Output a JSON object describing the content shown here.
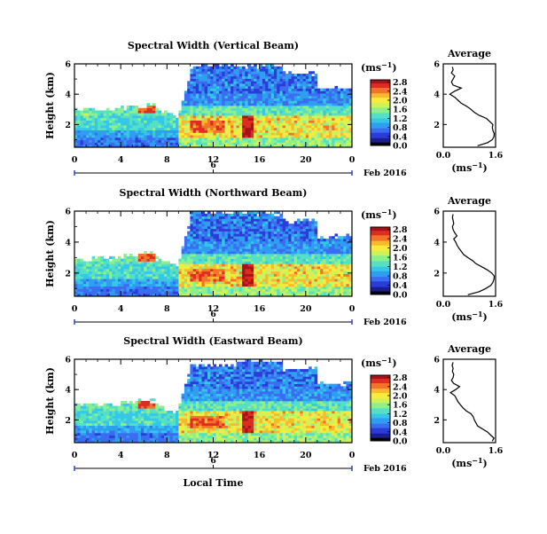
{
  "figure": {
    "shared_xlabel": "Local Time",
    "date_label": "Feb 2016",
    "day_label": "6",
    "colorbar_unit": "(ms",
    "unit_exp": "−1",
    "average_title": "Average",
    "average_unit": "(ms",
    "ylabel": "Height (km)"
  },
  "colormap": [
    "#000000",
    "#1a1f8f",
    "#2b3dd8",
    "#3b6cf2",
    "#2f9ef0",
    "#35c7e8",
    "#55e0c4",
    "#8df08a",
    "#cdf25a",
    "#f7ec3c",
    "#f9b92e",
    "#f4722a",
    "#dd2d23",
    "#a5121a"
  ],
  "chart_data": [
    {
      "type": "heatmap",
      "title": "Spectral Width (Vertical Beam)",
      "xlabel": "",
      "ylabel": "Height (km)",
      "x_ticks": [
        "0",
        "4",
        "8",
        "12",
        "16",
        "20",
        "0"
      ],
      "y_ticks": [
        "2",
        "4",
        "6"
      ],
      "xlim": [
        0,
        24
      ],
      "ylim": [
        0.5,
        6
      ],
      "colorbar_ticks": [
        "0.0",
        "0.4",
        "0.8",
        "1.2",
        "1.6",
        "2.0",
        "2.4",
        "2.8"
      ],
      "colorbar_range": [
        0.0,
        2.9
      ],
      "average_profile": {
        "xlim": [
          0.0,
          1.6
        ],
        "x_ticks": [
          "0.0",
          "1.6"
        ],
        "y_ticks": [
          "2",
          "4",
          "6"
        ],
        "height_km": [
          0.6,
          0.8,
          1.0,
          1.2,
          1.4,
          1.6,
          1.8,
          2.0,
          2.2,
          2.4,
          2.6,
          2.8,
          3.0,
          3.2,
          3.4,
          3.6,
          3.8,
          4.0,
          4.2,
          4.4,
          4.6,
          4.8,
          5.0,
          5.2,
          5.4,
          5.6,
          5.8
        ],
        "mean_width_ms": [
          1.05,
          1.35,
          1.5,
          1.55,
          1.56,
          1.52,
          1.5,
          1.52,
          1.42,
          1.32,
          1.1,
          0.95,
          0.85,
          0.72,
          0.55,
          0.45,
          0.35,
          0.2,
          0.35,
          0.55,
          0.3,
          0.25,
          0.3,
          0.35,
          0.25,
          0.3,
          0.28
        ]
      }
    },
    {
      "type": "heatmap",
      "title": "Spectral Width (Northward Beam)",
      "xlabel": "",
      "ylabel": "Height (km)",
      "x_ticks": [
        "0",
        "4",
        "8",
        "12",
        "16",
        "20",
        "0"
      ],
      "y_ticks": [
        "2",
        "4",
        "6"
      ],
      "xlim": [
        0,
        24
      ],
      "ylim": [
        0.5,
        6
      ],
      "colorbar_ticks": [
        "0.0",
        "0.4",
        "0.8",
        "1.2",
        "1.6",
        "2.0",
        "2.4",
        "2.8"
      ],
      "colorbar_range": [
        0.0,
        2.9
      ],
      "average_profile": {
        "xlim": [
          0.0,
          1.6
        ],
        "x_ticks": [
          "0.0",
          "1.6"
        ],
        "y_ticks": [
          "2",
          "4",
          "6"
        ],
        "height_km": [
          0.6,
          0.8,
          1.0,
          1.2,
          1.4,
          1.6,
          1.8,
          2.0,
          2.2,
          2.4,
          2.6,
          2.8,
          3.0,
          3.2,
          3.4,
          3.6,
          3.8,
          4.0,
          4.2,
          4.4,
          4.6,
          4.8,
          5.0,
          5.2,
          5.4,
          5.6,
          5.8
        ],
        "mean_width_ms": [
          0.75,
          1.1,
          1.3,
          1.45,
          1.52,
          1.55,
          1.56,
          1.48,
          1.35,
          1.18,
          1.0,
          0.9,
          0.75,
          0.62,
          0.55,
          0.48,
          0.42,
          0.38,
          0.32,
          0.42,
          0.35,
          0.3,
          0.28,
          0.32,
          0.3,
          0.28,
          0.3
        ]
      }
    },
    {
      "type": "heatmap",
      "title": "Spectral Width (Eastward Beam)",
      "xlabel": "Local Time",
      "ylabel": "Height (km)",
      "x_ticks": [
        "0",
        "4",
        "8",
        "12",
        "16",
        "20",
        "0"
      ],
      "y_ticks": [
        "2",
        "4",
        "6"
      ],
      "xlim": [
        0,
        24
      ],
      "ylim": [
        0.5,
        6
      ],
      "colorbar_ticks": [
        "0.0",
        "0.4",
        "0.8",
        "1.2",
        "1.6",
        "2.0",
        "2.4",
        "2.8"
      ],
      "colorbar_range": [
        0.0,
        2.9
      ],
      "average_profile": {
        "xlim": [
          0.0,
          1.6
        ],
        "x_ticks": [
          "0.0",
          "1.6"
        ],
        "y_ticks": [
          "2",
          "4",
          "6"
        ],
        "height_km": [
          0.6,
          0.8,
          1.0,
          1.2,
          1.4,
          1.6,
          1.8,
          2.0,
          2.2,
          2.4,
          2.6,
          2.8,
          3.0,
          3.2,
          3.4,
          3.6,
          3.8,
          4.0,
          4.2,
          4.4,
          4.6,
          4.8,
          5.0,
          5.2,
          5.4,
          5.6,
          5.8
        ],
        "mean_width_ms": [
          1.5,
          1.55,
          1.45,
          1.35,
          1.2,
          1.05,
          1.0,
          0.95,
          0.92,
          0.85,
          0.7,
          0.6,
          0.52,
          0.45,
          0.4,
          0.35,
          0.22,
          0.38,
          0.5,
          0.32,
          0.25,
          0.3,
          0.32,
          0.28,
          0.3,
          0.27,
          0.3
        ]
      }
    }
  ]
}
